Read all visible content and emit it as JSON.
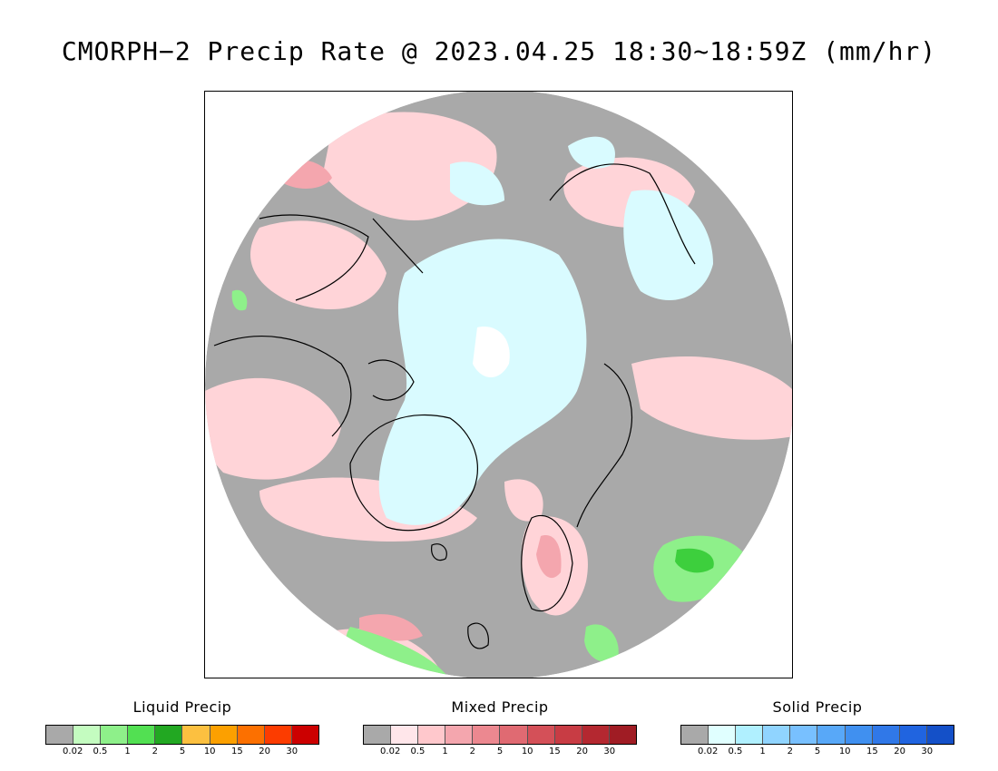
{
  "title": "CMORPH−2 Precip Rate @ 2023.04.25 18:30~18:59Z (mm/hr)",
  "map": {
    "projection": "polar stereographic, north pole",
    "background_color": "#a9a9a9",
    "coastline_color": "#000000",
    "colors": {
      "no_precip": "#a9a9a9",
      "solid_light": "#d9fbff",
      "mixed_light": "#ffd4d8",
      "mixed_medium": "#f4a6ae",
      "liquid_light": "#8ef08a",
      "liquid_medium": "#3dcf3d"
    }
  },
  "legends": [
    {
      "title": "Liquid Precip",
      "colors": [
        "#a9a9a9",
        "#c4fcc0",
        "#8ef08a",
        "#52e052",
        "#22a822",
        "#fcc040",
        "#fca000",
        "#fc7000",
        "#fc3c00",
        "#cc0000"
      ],
      "ticks": [
        "0.02",
        "0.5",
        "1",
        "2",
        "5",
        "10",
        "15",
        "20",
        "30"
      ]
    },
    {
      "title": "Mixed Precip",
      "colors": [
        "#a9a9a9",
        "#ffe6ea",
        "#ffc8cc",
        "#f4a6ae",
        "#ec8890",
        "#e06a72",
        "#d45058",
        "#c83c44",
        "#b42830",
        "#a01c24"
      ],
      "ticks": [
        "0.02",
        "0.5",
        "1",
        "2",
        "5",
        "10",
        "15",
        "20",
        "30"
      ]
    },
    {
      "title": "Solid Precip",
      "colors": [
        "#a9a9a9",
        "#e0ffff",
        "#b0f0ff",
        "#90d4ff",
        "#78c0ff",
        "#58a8f8",
        "#4090f0",
        "#3078e8",
        "#2064e0",
        "#1450c8"
      ],
      "ticks": [
        "0.02",
        "0.5",
        "1",
        "2",
        "5",
        "10",
        "15",
        "20",
        "30"
      ]
    }
  ]
}
